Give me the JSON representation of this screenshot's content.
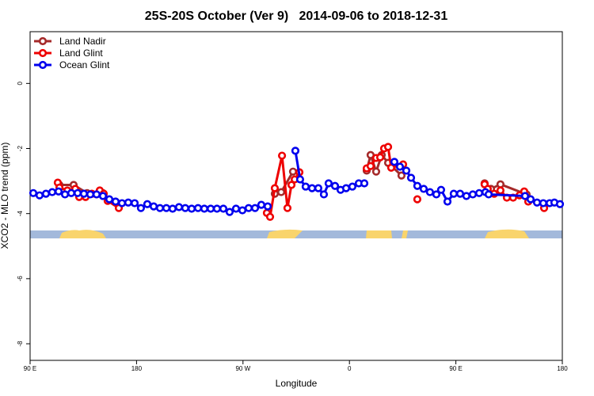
{
  "chart_data": {
    "type": "line",
    "title": "25S-20S October (Ver 9)   2014-09-06 to 2018-12-31",
    "x_label": "Longitude",
    "y_label": "XCO2 - MLO trend (ppm)",
    "xlim": [
      90,
      540
    ],
    "ylim": [
      -8.51,
      1.59
    ],
    "xticks": [
      {
        "value": 90,
        "label": "90 E"
      },
      {
        "value": 180,
        "label": "180"
      },
      {
        "value": 270,
        "label": "90 W"
      },
      {
        "value": 360,
        "label": "0"
      },
      {
        "value": 450,
        "label": "90 E"
      },
      {
        "value": 540,
        "label": "180"
      }
    ],
    "yticks": [
      0,
      -2,
      -4,
      -6,
      -8
    ],
    "legend": "top-left",
    "series": [
      {
        "name": "Land Nadir",
        "color": "#a52a2a",
        "x": [
          114.8,
          126.8,
          138.2,
          151.6,
          null,
          296.9,
          302.3,
          312.3,
          null,
          374.6,
          377.9,
          382.6,
          387.3,
          392.7,
          404.0,
          null,
          474.3,
          479.7,
          487.7,
          509.8
        ],
        "values": [
          -3.12,
          -3.12,
          -3.37,
          -3.37,
          null,
          -3.39,
          -3.34,
          -2.71,
          null,
          -2.68,
          -2.2,
          -2.71,
          -2.2,
          -2.44,
          -2.83,
          null,
          -3.07,
          -3.24,
          -3.1,
          -3.41
        ]
      },
      {
        "name": "Land Glint",
        "color": "#ee0000",
        "x": [
          113.4,
          114.8,
          121.5,
          128.2,
          131.5,
          136.9,
          142.2,
          146.2,
          148.9,
          152.3,
          155.6,
          165.0,
          null,
          290.2,
          292.9,
          296.9,
          303.0,
          307.6,
          311.0,
          313.7,
          317.7,
          null,
          374.6,
          377.9,
          382.6,
          386.0,
          389.3,
          392.7,
          395.3,
          405.4,
          null,
          417.4,
          null,
          474.3,
          477.0,
          482.4,
          487.7,
          493.1,
          498.4,
          503.8,
          507.8,
          511.2,
          null,
          524.6
        ],
        "values": [
          -3.05,
          -3.2,
          -3.29,
          -3.24,
          -3.49,
          -3.49,
          -3.39,
          -3.41,
          -3.29,
          -3.39,
          -3.61,
          -3.83,
          null,
          -3.98,
          -4.1,
          -3.22,
          -2.22,
          -3.83,
          -3.12,
          -2.95,
          -2.73,
          null,
          -2.61,
          -2.54,
          -2.29,
          -2.27,
          -2.0,
          -1.95,
          -2.59,
          -2.49,
          null,
          -3.56,
          null,
          -3.1,
          -3.24,
          -3.39,
          -3.29,
          -3.51,
          -3.51,
          -3.44,
          -3.32,
          -3.63,
          null,
          -3.83
        ]
      },
      {
        "name": "Ocean Glint",
        "color": "#0000ee",
        "x": [
          92.7,
          98.0,
          103.4,
          108.7,
          114.1,
          119.5,
          124.8,
          130.2,
          135.5,
          140.9,
          146.2,
          151.6,
          157.0,
          162.3,
          167.7,
          173.0,
          178.4,
          183.7,
          189.1,
          194.5,
          199.8,
          205.2,
          210.5,
          215.9,
          221.2,
          226.6,
          232.0,
          237.3,
          242.7,
          248.0,
          253.4,
          258.7,
          264.1,
          269.5,
          274.8,
          280.2,
          285.5,
          290.9,
          null,
          314.3,
          318.3,
          323.0,
          328.4,
          333.7,
          338.4,
          342.4,
          347.8,
          352.5,
          357.2,
          362.5,
          367.9,
          372.6,
          null,
          398.0,
          402.7,
          408.1,
          412.1,
          417.4,
          422.8,
          428.1,
          433.5,
          437.5,
          442.9,
          448.2,
          453.6,
          458.9,
          464.3,
          469.7,
          475.0,
          477.7,
          508.5,
          513.2,
          518.6,
          523.9,
          529.3,
          533.3,
          538.0
        ],
        "values": [
          -3.37,
          -3.44,
          -3.39,
          -3.34,
          -3.32,
          -3.41,
          -3.37,
          -3.37,
          -3.39,
          -3.41,
          -3.41,
          -3.46,
          -3.56,
          -3.63,
          -3.68,
          -3.66,
          -3.68,
          -3.83,
          -3.71,
          -3.78,
          -3.83,
          -3.83,
          -3.85,
          -3.8,
          -3.83,
          -3.85,
          -3.83,
          -3.85,
          -3.85,
          -3.85,
          -3.85,
          -3.95,
          -3.85,
          -3.9,
          -3.83,
          -3.83,
          -3.73,
          -3.78,
          null,
          -2.07,
          -2.95,
          -3.17,
          -3.22,
          -3.22,
          -3.41,
          -3.07,
          -3.15,
          -3.27,
          -3.22,
          -3.17,
          -3.07,
          -3.07,
          null,
          -2.41,
          -2.56,
          -2.68,
          -2.9,
          -3.15,
          -3.24,
          -3.34,
          -3.41,
          -3.27,
          -3.63,
          -3.39,
          -3.39,
          -3.46,
          -3.41,
          -3.37,
          -3.34,
          -3.41,
          -3.46,
          -3.56,
          -3.66,
          -3.68,
          -3.68,
          -3.66,
          -3.71
        ]
      }
    ]
  }
}
